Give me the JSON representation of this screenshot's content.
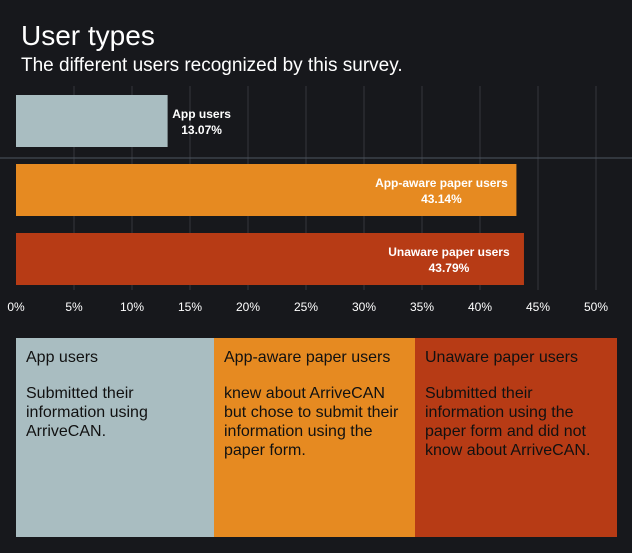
{
  "header": {
    "title": "User types",
    "subtitle": "The different users recognized by this survey."
  },
  "chart_data": {
    "type": "bar",
    "orientation": "horizontal",
    "title": "User types",
    "subtitle": "The different users recognized by this survey.",
    "categories": [
      "App users",
      "App-aware paper users",
      "Unaware paper users"
    ],
    "values": [
      13.07,
      43.14,
      43.79
    ],
    "value_labels": [
      "13.07%",
      "43.14%",
      "43.79%"
    ],
    "colors": [
      "#a9bdc1",
      "#e68a21",
      "#b73b15"
    ],
    "xlim": [
      0,
      50
    ],
    "x_ticks": [
      0,
      5,
      10,
      15,
      20,
      25,
      30,
      35,
      40,
      45,
      50
    ],
    "x_tick_labels": [
      "0%",
      "5%",
      "10%",
      "15%",
      "20%",
      "25%",
      "30%",
      "35%",
      "40%",
      "45%",
      "50%"
    ],
    "grid": true,
    "xlabel": "",
    "ylabel": ""
  },
  "legend": [
    {
      "title": "App users",
      "description": "Submitted their information using ArriveCAN.",
      "background": "#a9bdc1",
      "text_color": "#111111"
    },
    {
      "title": "App-aware paper users",
      "description": "knew about ArriveCAN but chose to submit their information using the paper form.",
      "background": "#e68a21",
      "text_color": "#111111"
    },
    {
      "title": "Unaware paper users",
      "description": "Submitted their information using the paper form and did not know about ArriveCAN.",
      "background": "#b73b15",
      "text_color": "#111111"
    }
  ]
}
